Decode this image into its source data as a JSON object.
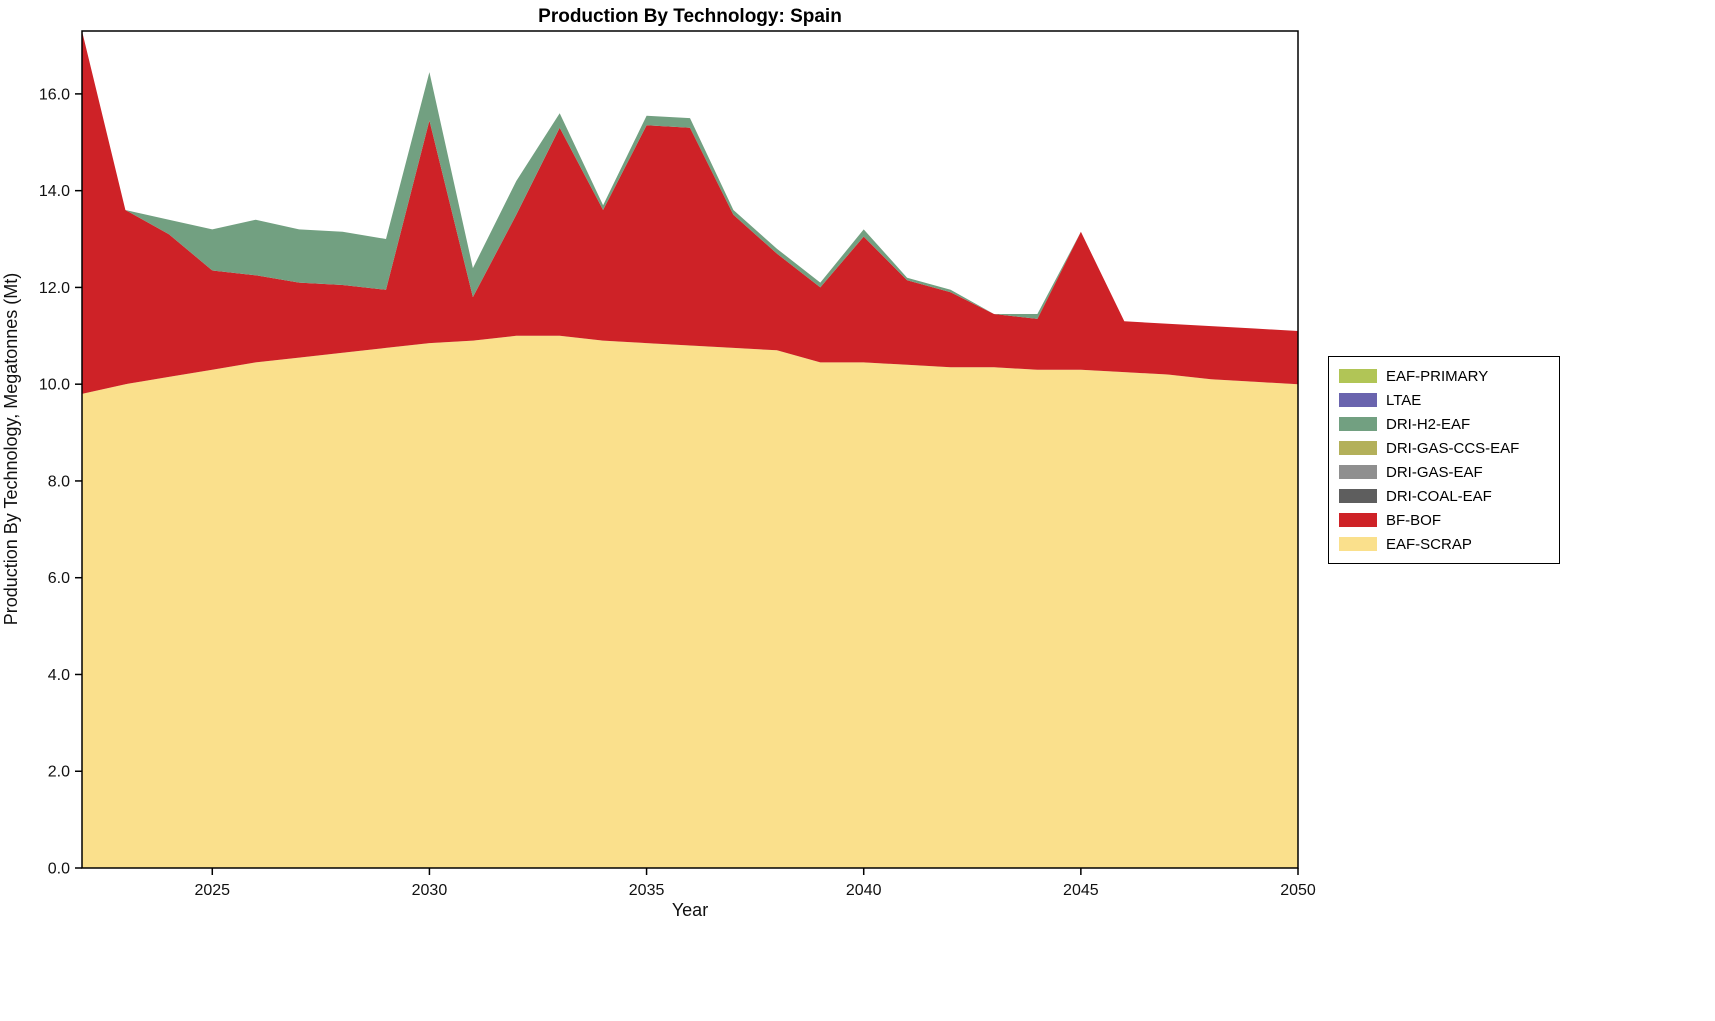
{
  "chart_data": {
    "type": "area",
    "stacked": true,
    "title": "Production By Technology: Spain",
    "xlabel": "Year",
    "ylabel": "Production By Technology, Megatonnes (Mt)",
    "xlim": [
      2022,
      2050
    ],
    "ylim": [
      0,
      17.3
    ],
    "xticks": [
      2025,
      2030,
      2035,
      2040,
      2045,
      2050
    ],
    "yticks": [
      0,
      2,
      4,
      6,
      8,
      10,
      12,
      14,
      16
    ],
    "grid": false,
    "legend_position": "right-outside",
    "x": [
      2022,
      2023,
      2024,
      2025,
      2026,
      2027,
      2028,
      2029,
      2030,
      2031,
      2032,
      2033,
      2034,
      2035,
      2036,
      2037,
      2038,
      2039,
      2040,
      2041,
      2042,
      2043,
      2044,
      2045,
      2046,
      2047,
      2048,
      2049,
      2050
    ],
    "series": [
      {
        "name": "EAF-SCRAP",
        "color": "#FAE08C",
        "values": [
          9.8,
          10.0,
          10.15,
          10.3,
          10.45,
          10.55,
          10.65,
          10.75,
          10.85,
          10.9,
          11.0,
          11.0,
          10.9,
          10.85,
          10.8,
          10.75,
          10.7,
          10.45,
          10.45,
          10.4,
          10.35,
          10.35,
          10.3,
          10.3,
          10.25,
          10.2,
          10.1,
          10.05,
          10.0
        ]
      },
      {
        "name": "BF-BOF",
        "color": "#CE2227",
        "values": [
          7.5,
          3.6,
          2.95,
          2.05,
          1.8,
          1.55,
          1.4,
          1.2,
          4.6,
          0.9,
          2.5,
          4.3,
          2.7,
          4.5,
          4.5,
          2.75,
          2.0,
          1.55,
          2.6,
          1.75,
          1.55,
          1.1,
          1.05,
          2.85,
          1.05,
          1.05,
          1.1,
          1.1,
          1.1
        ]
      },
      {
        "name": "DRI-COAL-EAF",
        "color": "#5E5E5E",
        "values": [
          0,
          0,
          0,
          0,
          0,
          0,
          0,
          0,
          0,
          0,
          0,
          0,
          0,
          0,
          0,
          0,
          0,
          0,
          0,
          0,
          0,
          0,
          0,
          0,
          0,
          0,
          0,
          0,
          0
        ]
      },
      {
        "name": "DRI-GAS-EAF",
        "color": "#8F8F8F",
        "values": [
          0,
          0,
          0,
          0,
          0,
          0,
          0,
          0,
          0,
          0,
          0,
          0,
          0,
          0,
          0,
          0,
          0,
          0,
          0,
          0,
          0,
          0,
          0,
          0,
          0,
          0,
          0,
          0,
          0
        ]
      },
      {
        "name": "DRI-GAS-CCS-EAF",
        "color": "#B3B05A",
        "values": [
          0,
          0,
          0,
          0,
          0,
          0,
          0,
          0,
          0,
          0,
          0,
          0,
          0,
          0,
          0,
          0,
          0,
          0,
          0,
          0,
          0,
          0,
          0,
          0,
          0,
          0,
          0,
          0,
          0
        ]
      },
      {
        "name": "DRI-H2-EAF",
        "color": "#72A081",
        "values": [
          0,
          0,
          0.3,
          0.85,
          1.15,
          1.1,
          1.1,
          1.05,
          1.0,
          0.6,
          0.7,
          0.3,
          0.1,
          0.2,
          0.2,
          0.1,
          0.1,
          0.1,
          0.15,
          0.05,
          0.05,
          0,
          0.1,
          0,
          0,
          0,
          0,
          0,
          0
        ]
      },
      {
        "name": "LTAE",
        "color": "#6A64AE",
        "values": [
          0,
          0,
          0,
          0,
          0,
          0,
          0,
          0,
          0,
          0,
          0,
          0,
          0,
          0,
          0,
          0,
          0,
          0,
          0,
          0,
          0,
          0,
          0,
          0,
          0,
          0,
          0,
          0,
          0
        ]
      },
      {
        "name": "EAF-PRIMARY",
        "color": "#B1C556",
        "values": [
          0,
          0,
          0,
          0,
          0,
          0,
          0,
          0,
          0,
          0,
          0,
          0,
          0,
          0,
          0,
          0,
          0,
          0,
          0,
          0,
          0,
          0,
          0,
          0,
          0,
          0,
          0,
          0,
          0
        ]
      }
    ],
    "legend": {
      "entries": [
        {
          "label": "EAF-PRIMARY",
          "color": "#B1C556"
        },
        {
          "label": "LTAE",
          "color": "#6A64AE"
        },
        {
          "label": "DRI-H2-EAF",
          "color": "#72A081"
        },
        {
          "label": "DRI-GAS-CCS-EAF",
          "color": "#B3B05A"
        },
        {
          "label": "DRI-GAS-EAF",
          "color": "#8F8F8F"
        },
        {
          "label": "DRI-COAL-EAF",
          "color": "#5E5E5E"
        },
        {
          "label": "BF-BOF",
          "color": "#CE2227"
        },
        {
          "label": "EAF-SCRAP",
          "color": "#FAE08C"
        }
      ]
    }
  }
}
